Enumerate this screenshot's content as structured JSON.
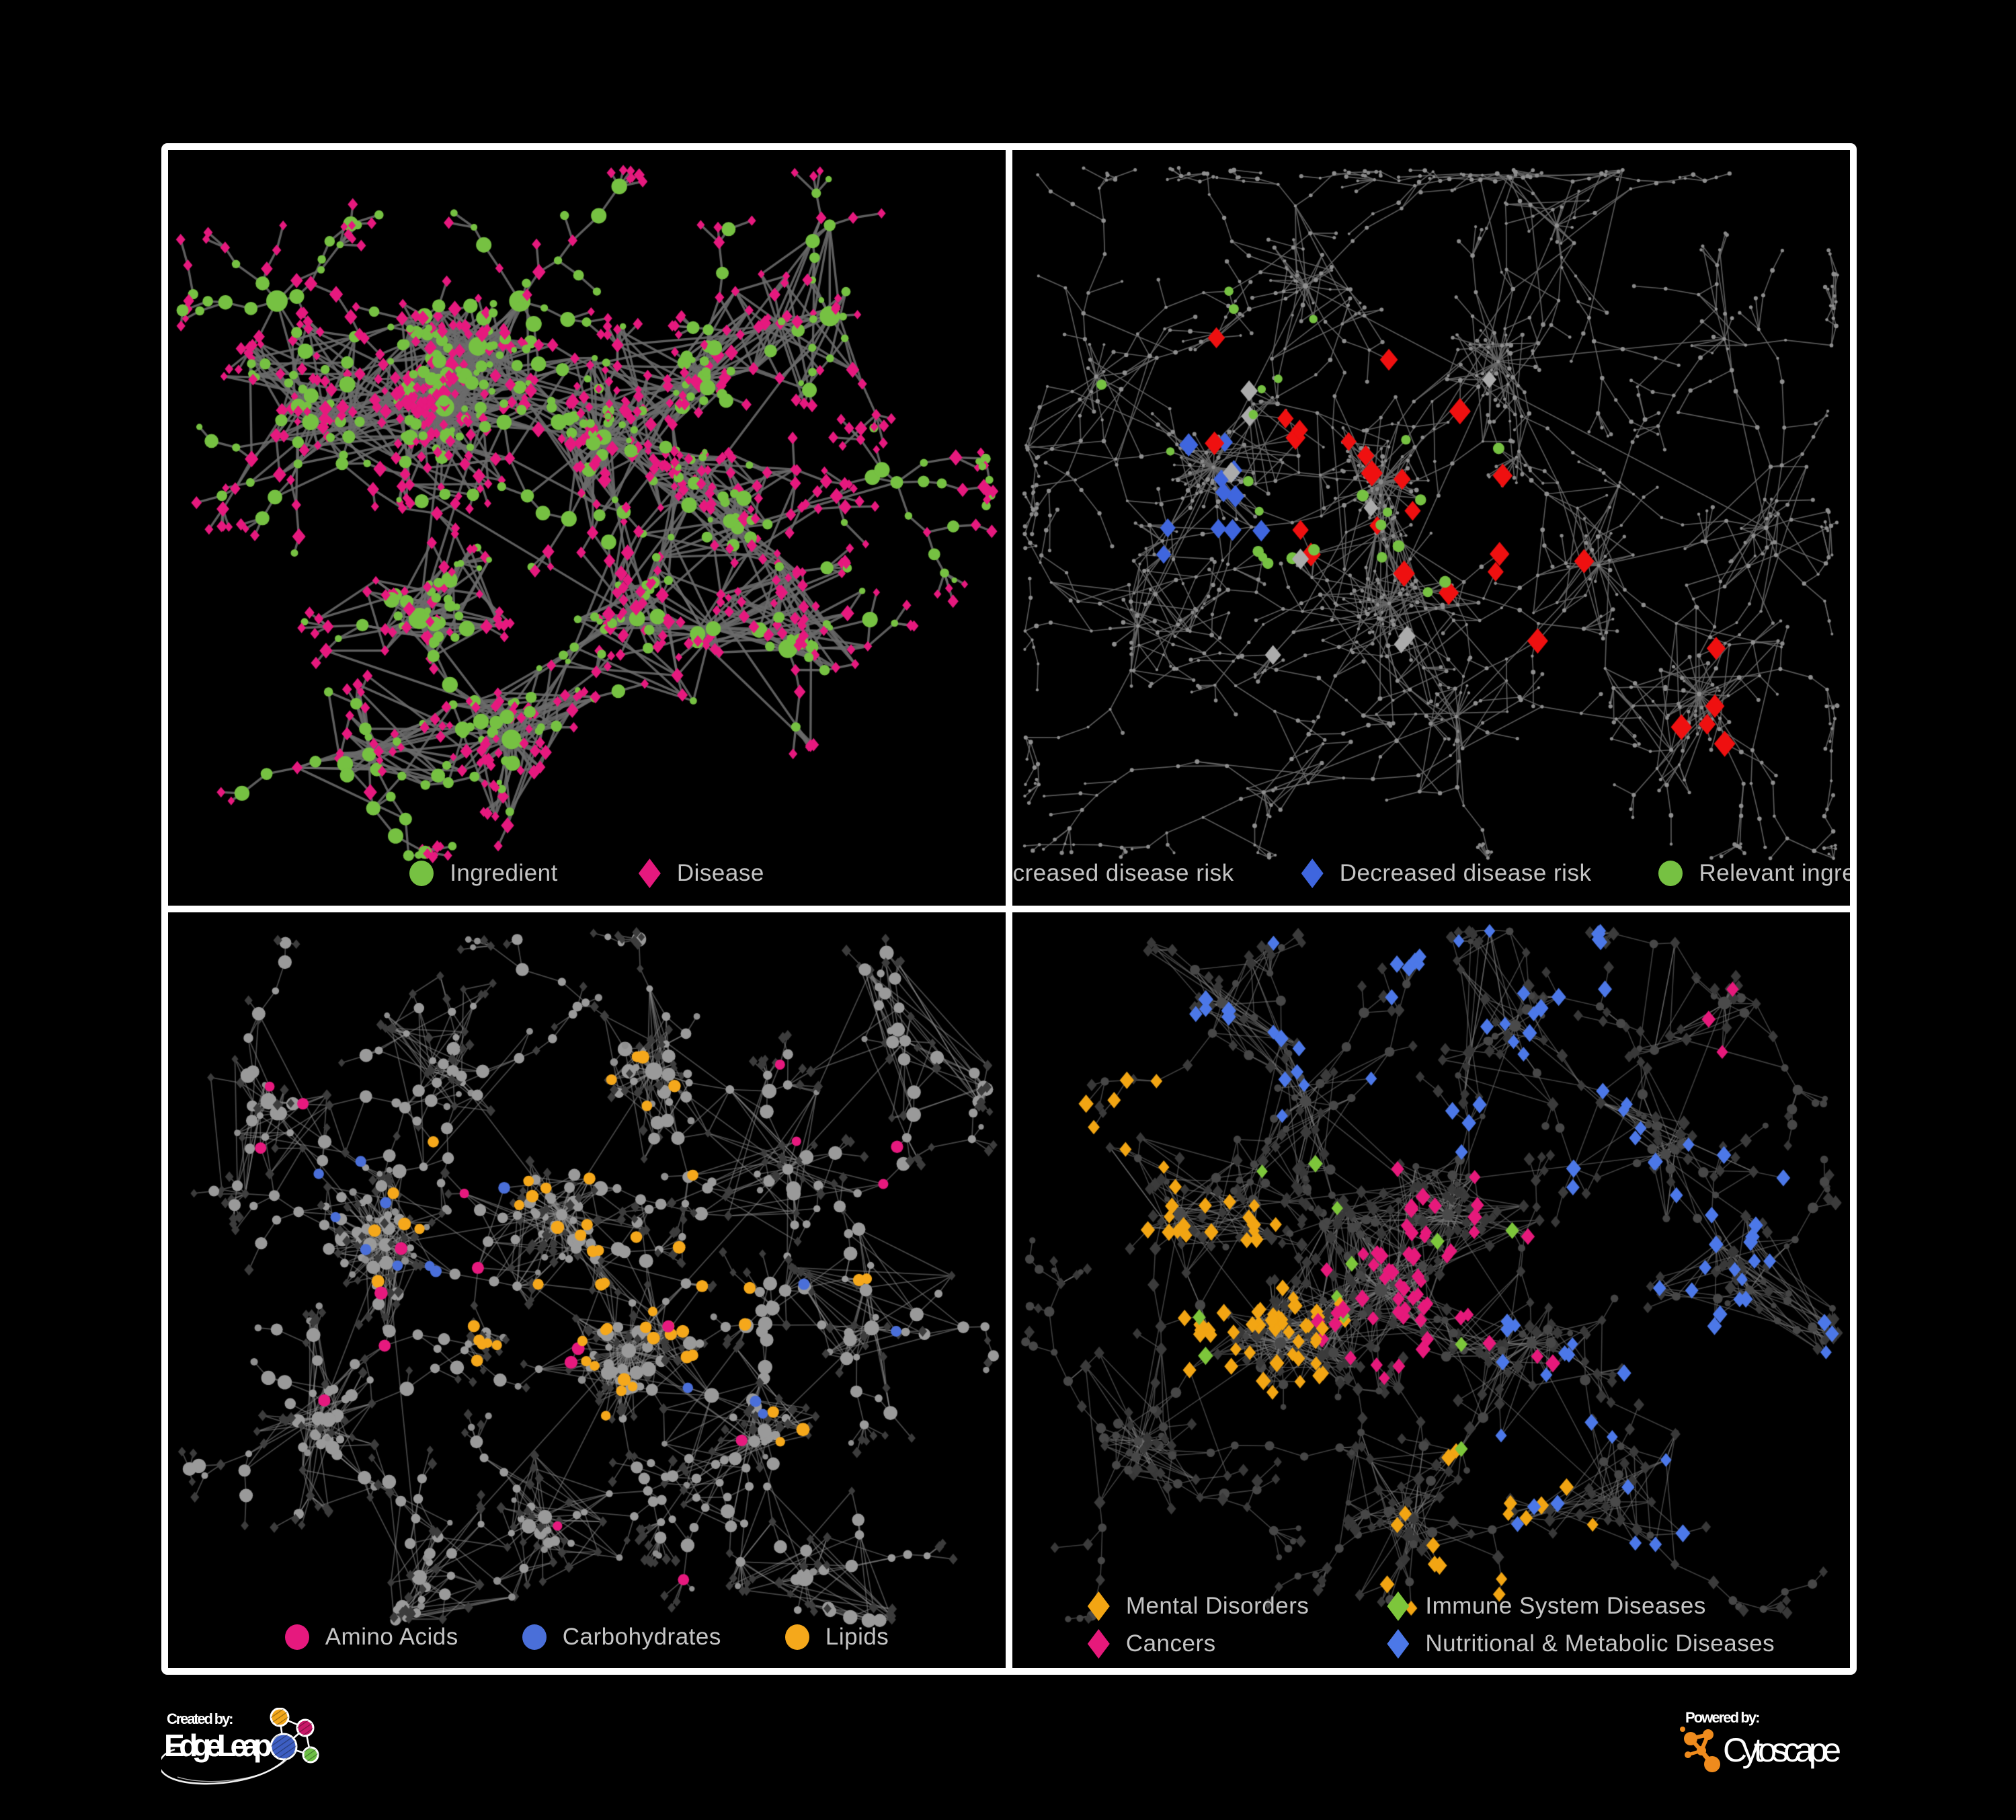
{
  "branding": {
    "created_by": "Created by:",
    "edgeleap": "EdgeLeap",
    "powered_by": "Powered by:",
    "cytoscape": "Cytoscape",
    "edgeleap_node_colors": [
      "#F2A71B",
      "#C81768",
      "#3D5EC2",
      "#6CBE45"
    ],
    "cytoscape_orange": "#EF8B1D"
  },
  "panels": [
    {
      "name": "ingredient-disease",
      "legend": [
        {
          "label": "Ingredient",
          "shape": "circle",
          "color": "#76C142"
        },
        {
          "label": "Disease",
          "shape": "diamond",
          "color": "#E6197E"
        }
      ],
      "network": {
        "seed": 7,
        "edge": {
          "color": "#6b6b6b",
          "width": 3.4,
          "alpha": 0.88
        },
        "hubs": [
          [
            0.33,
            0.34,
            2.2
          ],
          [
            0.37,
            0.26,
            1.5
          ],
          [
            0.17,
            0.36,
            1.2
          ],
          [
            0.52,
            0.38,
            1.5
          ],
          [
            0.42,
            0.2,
            0
          ],
          [
            0.64,
            0.3,
            0.8
          ],
          [
            0.3,
            0.62,
            1.0
          ],
          [
            0.56,
            0.62,
            1.0
          ],
          [
            0.68,
            0.5,
            0.8
          ],
          [
            0.41,
            0.78,
            1.3
          ],
          [
            0.79,
            0.22,
            0.6
          ],
          [
            0.13,
            0.2,
            0
          ],
          [
            0.74,
            0.66,
            0.7
          ],
          [
            0.24,
            0.8,
            0.5
          ],
          [
            0.87,
            0.44,
            0
          ]
        ],
        "branches": [
          3,
          6
        ],
        "blen": [
          2,
          5
        ],
        "step": [
          24,
          60
        ],
        "fan": [
          2,
          6
        ],
        "fork": 0.35,
        "cross": 1.0,
        "hub_style": {
          "shape": "circle",
          "color": "#76C142",
          "r": [
            9,
            16
          ]
        },
        "mid_variants": [
          {
            "shape": "circle",
            "color": "#76C142",
            "r": [
              5,
              12
            ],
            "p": 0.55
          },
          {
            "shape": "diamond",
            "color": "#E6197E",
            "r": [
              6,
              10
            ],
            "p": 0.45
          }
        ],
        "leaf_variants": [
          {
            "shape": "diamond",
            "color": "#E6197E",
            "r": [
              5,
              8
            ],
            "p": 0.8
          },
          {
            "shape": "circle",
            "color": "#76C142",
            "r": [
              4,
              7
            ],
            "p": 0.2
          }
        ],
        "special": []
      }
    },
    {
      "name": "disease-risk",
      "legend": [
        {
          "label": "Increased disease risk",
          "shape": "diamond",
          "color": "#EF1010"
        },
        {
          "label": "Decreased disease risk",
          "shape": "diamond",
          "color": "#3F66DE"
        },
        {
          "label": "Relevant ingredient",
          "shape": "circle",
          "color": "#76C142"
        }
      ],
      "network": {
        "seed": 13,
        "edge": {
          "color": "#686868",
          "width": 1.7,
          "alpha": 0.85
        },
        "hubs": [
          [
            0.44,
            0.44,
            1.6
          ],
          [
            0.24,
            0.42,
            1.2
          ],
          [
            0.58,
            0.28,
            0.8
          ],
          [
            0.35,
            0.18,
            0.6
          ],
          [
            0.7,
            0.55,
            0.7
          ],
          [
            0.82,
            0.72,
            0.8
          ],
          [
            0.15,
            0.63,
            0.6
          ],
          [
            0.53,
            0.75,
            0.6
          ],
          [
            0.85,
            0.25,
            0.5
          ],
          [
            0.3,
            0.85,
            0.4
          ],
          [
            0.1,
            0.3,
            0.4
          ],
          [
            0.65,
            0.1,
            0.4
          ],
          [
            0.9,
            0.5,
            0.3
          ],
          [
            0.45,
            0.6,
            0.8
          ]
        ],
        "branches": [
          4,
          7
        ],
        "blen": [
          3,
          8
        ],
        "step": [
          28,
          70
        ],
        "fan": [
          2,
          5
        ],
        "fork": 0.45,
        "cross": 0.45,
        "hub_style": {
          "shape": "circle",
          "color": "#8f8f8f",
          "r": [
            2.5,
            4
          ]
        },
        "mid_variants": [
          {
            "shape": "circle",
            "color": "#8f8f8f",
            "r": [
              2,
              3.5
            ],
            "p": 1
          }
        ],
        "leaf_variants": [
          {
            "shape": "circle",
            "color": "#8a8a8a",
            "r": [
              2,
              3.2
            ],
            "p": 1
          }
        ],
        "special": [
          {
            "shape": "diamond",
            "color": "#EF1010",
            "count": 27,
            "r": [
              11,
              16
            ],
            "zones": [
              [
                0.45,
                0.42,
                0.16
              ],
              [
                0.27,
                0.33,
                0.09
              ],
              [
                0.8,
                0.72,
                0.1
              ],
              [
                0.6,
                0.55,
                0.1
              ]
            ]
          },
          {
            "shape": "diamond",
            "color": "#3F66DE",
            "count": 11,
            "r": [
              10,
              14
            ],
            "zones": [
              [
                0.22,
                0.45,
                0.1
              ],
              [
                0.88,
                0.28,
                0.05
              ]
            ]
          },
          {
            "shape": "diamond",
            "color": "#ababab",
            "count": 9,
            "r": [
              10,
              13
            ],
            "zones": [
              [
                0.4,
                0.45,
                0.22
              ],
              [
                0.22,
                0.3,
                0.08
              ]
            ]
          },
          {
            "shape": "circle",
            "color": "#76C142",
            "count": 26,
            "r": [
              6,
              9
            ],
            "zones": [
              [
                0.42,
                0.43,
                0.18
              ],
              [
                0.13,
                0.36,
                0.07
              ],
              [
                0.3,
                0.28,
                0.1
              ]
            ]
          }
        ]
      }
    },
    {
      "name": "nutrient-classes",
      "legend": [
        {
          "label": "Amino Acids",
          "shape": "circle",
          "color": "#E6197E"
        },
        {
          "label": "Carbohydrates",
          "shape": "circle",
          "color": "#4A6FD9"
        },
        {
          "label": "Lipids",
          "shape": "circle",
          "color": "#F5A81B"
        }
      ],
      "network": {
        "seed": 21,
        "edge": {
          "color": "#8b8b8b",
          "width": 1.8,
          "alpha": 0.5
        },
        "hubs": [
          [
            0.26,
            0.44,
            2.4
          ],
          [
            0.47,
            0.4,
            1.6
          ],
          [
            0.55,
            0.58,
            1.8
          ],
          [
            0.58,
            0.21,
            1.3
          ],
          [
            0.34,
            0.21,
            0.8
          ],
          [
            0.74,
            0.34,
            0.7
          ],
          [
            0.18,
            0.67,
            0.8
          ],
          [
            0.45,
            0.8,
            0.9
          ],
          [
            0.7,
            0.7,
            0.6
          ],
          [
            0.84,
            0.55,
            0.5
          ],
          [
            0.3,
            0.88,
            0.4
          ],
          [
            0.76,
            0.88,
            0.4
          ],
          [
            0.88,
            0.17,
            0.4
          ],
          [
            0.12,
            0.25,
            0.5
          ]
        ],
        "branches": [
          3,
          6
        ],
        "blen": [
          2,
          6
        ],
        "step": [
          24,
          62
        ],
        "fan": [
          2,
          7
        ],
        "fork": 0.4,
        "cross": 1.0,
        "hub_style": {
          "shape": "circle",
          "color": "#9a9a9a",
          "r": [
            8,
            14
          ]
        },
        "mid_variants": [
          {
            "shape": "circle",
            "color": "#9a9a9a",
            "r": [
              5,
              11
            ],
            "p": 0.8
          },
          {
            "shape": "diamond",
            "color": "#3f3f3f",
            "r": [
              5,
              7
            ],
            "p": 0.2
          }
        ],
        "leaf_variants": [
          {
            "shape": "diamond",
            "color": "#3c3c3c",
            "r": [
              5,
              7
            ],
            "p": 0.85
          },
          {
            "shape": "circle",
            "color": "#8f8f8f",
            "r": [
              4,
              6
            ],
            "p": 0.15
          }
        ],
        "special": [
          {
            "shape": "circle",
            "color": "#F5A81B",
            "count": 58,
            "r": [
              7,
              10
            ],
            "zones": [
              [
                0.52,
                0.22,
                0.09
              ],
              [
                0.4,
                0.44,
                0.16
              ],
              [
                0.55,
                0.6,
                0.08
              ],
              [
                0.7,
                0.52,
                0.18
              ]
            ]
          },
          {
            "shape": "circle",
            "color": "#4A6FD9",
            "count": 14,
            "r": [
              7,
              9
            ],
            "zones": [
              [
                0.5,
                0.2,
                0.09
              ],
              [
                0.3,
                0.4,
                0.14
              ],
              [
                0.76,
                0.58,
                0.16
              ]
            ]
          },
          {
            "shape": "circle",
            "color": "#E6197E",
            "count": 19,
            "r": [
              7,
              10
            ],
            "zones": [
              [
                0.14,
                0.45,
                0.25
              ],
              [
                0.5,
                0.76,
                0.25
              ],
              [
                0.85,
                0.3,
                0.22
              ]
            ]
          }
        ]
      }
    },
    {
      "name": "disease-classes",
      "legend": [
        {
          "label": "Mental Disorders",
          "shape": "diamond",
          "color": "#F2A513"
        },
        {
          "label": "Immune System Diseases",
          "shape": "diamond",
          "color": "#7DC63B"
        },
        {
          "label": "Cancers",
          "shape": "diamond",
          "color": "#E6197B"
        },
        {
          "label": "Nutritional & Metabolic Diseases",
          "shape": "diamond",
          "color": "#4C78E8"
        }
      ],
      "network": {
        "seed": 42,
        "edge": {
          "color": "#7d7d7d",
          "width": 1.6,
          "alpha": 0.5
        },
        "hubs": [
          [
            0.32,
            0.57,
            2.0
          ],
          [
            0.44,
            0.5,
            1.8
          ],
          [
            0.52,
            0.4,
            1.4
          ],
          [
            0.62,
            0.57,
            1.2
          ],
          [
            0.35,
            0.25,
            0.8
          ],
          [
            0.6,
            0.15,
            0.7
          ],
          [
            0.78,
            0.32,
            0.8
          ],
          [
            0.2,
            0.4,
            0.9
          ],
          [
            0.15,
            0.7,
            0.6
          ],
          [
            0.48,
            0.8,
            0.7
          ],
          [
            0.72,
            0.78,
            0.6
          ],
          [
            0.88,
            0.5,
            0.5
          ],
          [
            0.85,
            0.12,
            0.5
          ],
          [
            0.25,
            0.12,
            0.5
          ]
        ],
        "branches": [
          3,
          6
        ],
        "blen": [
          2,
          6
        ],
        "step": [
          26,
          64
        ],
        "fan": [
          2,
          6
        ],
        "fork": 0.4,
        "cross": 0.9,
        "hub_style": {
          "shape": "circle",
          "color": "#4a4a4a",
          "r": [
            6,
            10
          ]
        },
        "mid_variants": [
          {
            "shape": "circle",
            "color": "#474747",
            "r": [
              5,
              8
            ],
            "p": 0.45
          },
          {
            "shape": "diamond",
            "color": "#3b3b3b",
            "r": [
              6,
              9
            ],
            "p": 0.55
          }
        ],
        "leaf_variants": [
          {
            "shape": "diamond",
            "color": "#383838",
            "r": [
              6,
              8
            ],
            "p": 0.8
          },
          {
            "shape": "circle",
            "color": "#444444",
            "r": [
              4,
              6
            ],
            "p": 0.2
          }
        ],
        "special": [
          {
            "shape": "diamond",
            "color": "#F2A513",
            "count": 88,
            "r": [
              8,
              11
            ],
            "zones": [
              [
                0.3,
                0.57,
                0.08
              ],
              [
                0.27,
                0.52,
                0.13
              ],
              [
                0.15,
                0.3,
                0.12
              ],
              [
                0.55,
                0.85,
                0.15
              ]
            ]
          },
          {
            "shape": "diamond",
            "color": "#E6197B",
            "count": 62,
            "r": [
              8,
              11
            ],
            "zones": [
              [
                0.45,
                0.52,
                0.09
              ],
              [
                0.52,
                0.43,
                0.11
              ],
              [
                0.88,
                0.15,
                0.05
              ],
              [
                0.6,
                0.65,
                0.08
              ]
            ]
          },
          {
            "shape": "diamond",
            "color": "#4C78E8",
            "count": 92,
            "r": [
              8,
              11
            ],
            "zones": [
              [
                0.62,
                0.57,
                0.07
              ],
              [
                0.8,
                0.35,
                0.14
              ],
              [
                0.55,
                0.12,
                0.18
              ],
              [
                0.28,
                0.16,
                0.14
              ],
              [
                0.7,
                0.75,
                0.14
              ],
              [
                0.9,
                0.55,
                0.08
              ]
            ]
          },
          {
            "shape": "diamond",
            "color": "#7DC63B",
            "count": 12,
            "r": [
              8,
              11
            ],
            "zones": [
              [
                0.38,
                0.4,
                0.25
              ],
              [
                0.55,
                0.6,
                0.2
              ]
            ]
          }
        ]
      }
    }
  ]
}
